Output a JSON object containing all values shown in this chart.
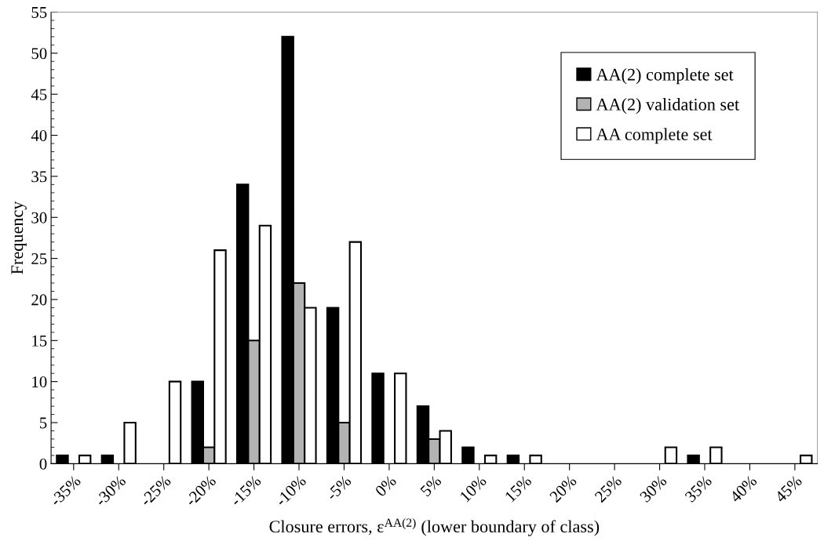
{
  "chart_data": {
    "type": "bar",
    "categories": [
      "-35%",
      "-30%",
      "-25%",
      "-20%",
      "-15%",
      "-10%",
      "-5%",
      "0%",
      "5%",
      "10%",
      "15%",
      "20%",
      "25%",
      "30%",
      "35%",
      "40%",
      "45%"
    ],
    "series": [
      {
        "name": "AA(2) complete set",
        "color": "#000000",
        "values": [
          1,
          1,
          0,
          10,
          34,
          52,
          19,
          11,
          7,
          2,
          1,
          0,
          0,
          0,
          1,
          0,
          0
        ]
      },
      {
        "name": "AA(2) validation set",
        "color": "#b3b3b3",
        "values": [
          0,
          0,
          0,
          2,
          15,
          22,
          5,
          0,
          3,
          0,
          0,
          0,
          0,
          0,
          0,
          0,
          0
        ]
      },
      {
        "name": "AA complete set",
        "color": "#ffffff",
        "values": [
          1,
          5,
          10,
          26,
          29,
          19,
          27,
          11,
          4,
          1,
          1,
          0,
          0,
          2,
          2,
          0,
          1
        ]
      }
    ],
    "xlabel": "Closure errors, ε$^{AA(2)}$ (lower boundary of class)",
    "ylabel": "Frequency",
    "ylim": [
      0,
      55
    ],
    "yticks": [
      0,
      5,
      10,
      15,
      20,
      25,
      30,
      35,
      40,
      45,
      50,
      55
    ],
    "grid": false,
    "legend": "top right"
  }
}
